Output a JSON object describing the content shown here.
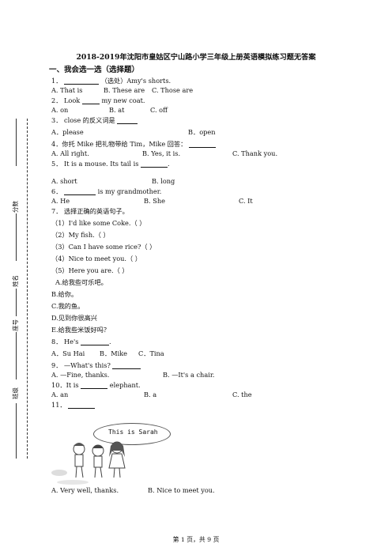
{
  "title": "2018-2019年沈阳市皇姑区宁山路小学三年级上册英语模拟练习题无答案",
  "section": "一、我会选一选（选择题）",
  "margin": {
    "score": "分数",
    "name": "姓名",
    "id": "座号",
    "class": "班级"
  },
  "lines": {
    "q1": "1．",
    "q1b": "（选处）Amy's shorts.",
    "q1a": "A. That is",
    "q1bb": "B. These are",
    "q1c": "C. Those are",
    "q2": "2．  Look",
    "q2b": "my new coat.",
    "q2a": "A. on",
    "q2bb": "B. at",
    "q2c": "C. off",
    "q3": "3．  close 的反义词是",
    "q3a": "A．please",
    "q3b": "B．open",
    "q4": "4．你托 Mike 把礼物带给 Tim，Mike 回答：",
    "q4a": "A. All right.",
    "q4b": "B. Yes, it is.",
    "q4c": "C. Thank you.",
    "q5": "5．  It is a mouse. Its tail is",
    "q5end": ".",
    "q5a": "A. short",
    "q5b": "B. long",
    "q6": "6．",
    "q6b": "is my grandmother.",
    "q6a": "A. He",
    "q6bb": "B. She",
    "q6c": "C. It",
    "q7": "7．  选择正确的英语句子。",
    "q7_1": "（1）I'd like some Coke.（          ）",
    "q7_2": "（2）My fish.（          ）",
    "q7_3": "（3）Can I have some rice?（          ）",
    "q7_4": "（4）Nice to meet you.（          ）",
    "q7_5": "（5）Here you are.（          ）",
    "q7A": "A.给我些可乐吧。",
    "q7B": "B.给你。",
    "q7C": "C.我的鱼。",
    "q7D": "D.见到你很高兴",
    "q7E": "E.给我些米饭好吗？",
    "q8": "8．  He's",
    "q8end": ".",
    "q8a": "A．Su Hai",
    "q8b": "B．Mike",
    "q8c": "C．Tina",
    "q9": "9．  —What's this?",
    "q9a": "A. —Fine, thanks.",
    "q9b": "B. —It's a chair.",
    "q10": "10．It is",
    "q10b": "elephant.",
    "q10a": "A. an",
    "q10bb": "B. a",
    "q10c": "C. the",
    "q11": "11．",
    "q11a": "A. Very well, thanks.",
    "q11b": "B. Nice to meet you."
  },
  "illustration": {
    "bubble_text": "This is Sarah"
  },
  "footer": "第 1 页，共 9 页"
}
